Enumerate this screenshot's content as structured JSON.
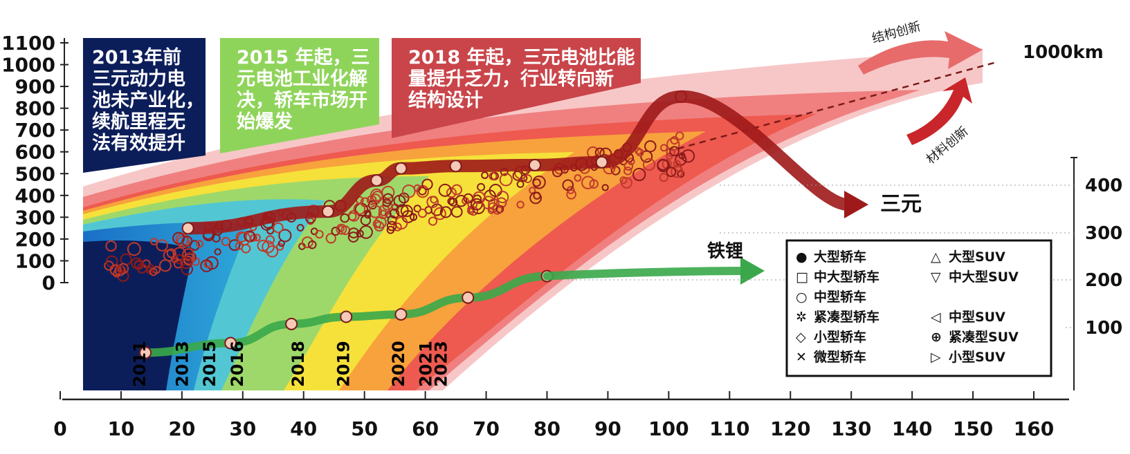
{
  "chart_data": {
    "type": "scatter",
    "x_axis": {
      "range": [
        0,
        160
      ],
      "ticks": [
        "0",
        "10",
        "20",
        "30",
        "40",
        "50",
        "60",
        "70",
        "80",
        "90",
        "100",
        "110",
        "120",
        "130",
        "140",
        "150",
        "160"
      ]
    },
    "y_axis_left": {
      "range": [
        0,
        1100
      ],
      "ticks": [
        "0",
        "100",
        "200",
        "300",
        "400",
        "500",
        "600",
        "700",
        "800",
        "900",
        "1000",
        "1100"
      ]
    },
    "y_axis_right": {
      "ticks": [
        "100",
        "200",
        "300",
        "400"
      ]
    },
    "year_labels": [
      {
        "text": "2011",
        "x": 14
      },
      {
        "text": "2013",
        "x": 21
      },
      {
        "text": "2015",
        "x": 25.5
      },
      {
        "text": "2016",
        "x": 30
      },
      {
        "text": "2018",
        "x": 40
      },
      {
        "text": "2019",
        "x": 47.5
      },
      {
        "text": "2020",
        "x": 56.5
      },
      {
        "text": "2021",
        "x": 61
      },
      {
        "text": "2023",
        "x": 63.5
      }
    ],
    "text_boxes": [
      {
        "lines": [
          "2013年前",
          "三元动力电",
          "池未产业化，",
          "续航里程无",
          "法有效提升"
        ],
        "color": "#0c1e5a"
      },
      {
        "lines": [
          "2015 年起，三",
          "元电池工业化解",
          "决，轿车市场开",
          "始爆发"
        ],
        "color": "#8fd45a"
      },
      {
        "lines": [
          "2018 年起，三元电池比能",
          "量提升乏力，行业转向新",
          "结构设计"
        ],
        "color": "#c9454a"
      }
    ],
    "series": [
      {
        "name": "三元",
        "color": "#9e1a1a",
        "points": [
          [
            21,
            310
          ],
          [
            44,
            345
          ],
          [
            52,
            410
          ],
          [
            56,
            435
          ],
          [
            65,
            440
          ],
          [
            78,
            442
          ],
          [
            89,
            448
          ],
          [
            102,
            585
          ]
        ]
      },
      {
        "name": "铁锂",
        "color": "#3aa84a",
        "points": [
          [
            14,
            50
          ],
          [
            28,
            70
          ],
          [
            38,
            110
          ],
          [
            47,
            125
          ],
          [
            56,
            130
          ],
          [
            67,
            165
          ],
          [
            80,
            210
          ]
        ]
      }
    ],
    "annotations": {
      "target": "1000km",
      "structure_innovation": "结构创新",
      "material_innovation": "材料创新"
    },
    "legend": {
      "placement": "bottom-right",
      "items": [
        {
          "symbol": "●",
          "label": "大型轿车"
        },
        {
          "symbol": "△",
          "label": "大型SUV"
        },
        {
          "symbol": "□",
          "label": "中大型轿车"
        },
        {
          "symbol": "▽",
          "label": "中大型SUV"
        },
        {
          "symbol": "○",
          "label": "中型轿车"
        },
        {
          "symbol": "",
          "label": ""
        },
        {
          "symbol": "✲",
          "label": "紧凑型轿车"
        },
        {
          "symbol": "◁",
          "label": "中型SUV"
        },
        {
          "symbol": "◇",
          "label": "小型轿车"
        },
        {
          "symbol": "⊕",
          "label": "紧凑型SUV"
        },
        {
          "symbol": "✕",
          "label": "微型轿车"
        },
        {
          "symbol": "▷",
          "label": "小型SUV"
        }
      ]
    }
  }
}
